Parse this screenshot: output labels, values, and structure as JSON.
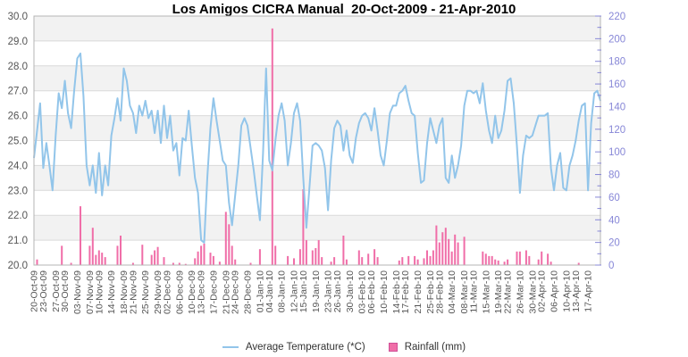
{
  "chart_data": {
    "type": "line+bar",
    "title": "Los Amigos CICRA Manual  20-Oct-2009 - 21-Apr-2010",
    "date_range": {
      "start": "20-Oct-2009",
      "end": "21-Apr-2010"
    },
    "legend_position": "bottom-center",
    "grid": "horizontal-only",
    "x": {
      "num_days": 184,
      "tick_labels": [
        "20-Oct-09",
        "23-Oct-09",
        "27-Oct-09",
        "30-Oct-09",
        "03-Nov-09",
        "07-Nov-09",
        "10-Nov-09",
        "14-Nov-09",
        "18-Nov-09",
        "21-Nov-09",
        "25-Nov-09",
        "29-Nov-09",
        "02-Dec-09",
        "06-Dec-09",
        "10-Dec-09",
        "13-Dec-09",
        "17-Dec-09",
        "21-Dec-09",
        "24-Dec-09",
        "28-Dec-09",
        "01-Jan-10",
        "04-Jan-10",
        "08-Jan-10",
        "12-Jan-10",
        "15-Jan-10",
        "19-Jan-10",
        "23-Jan-10",
        "26-Jan-10",
        "30-Jan-10",
        "03-Feb-10",
        "06-Feb-10",
        "10-Feb-10",
        "14-Feb-10",
        "17-Feb-10",
        "21-Feb-10",
        "25-Feb-10",
        "28-Feb-10",
        "04-Mar-10",
        "08-Mar-10",
        "11-Mar-10",
        "15-Mar-10",
        "19-Mar-10",
        "22-Mar-10",
        "26-Mar-10",
        "30-Mar-10",
        "02-Apr-10",
        "06-Apr-10",
        "10-Apr-10",
        "13-Apr-10",
        "17-Apr-10"
      ],
      "tick_day_index": [
        0,
        3,
        7,
        10,
        14,
        18,
        21,
        25,
        29,
        32,
        36,
        40,
        43,
        47,
        51,
        54,
        58,
        62,
        65,
        69,
        73,
        76,
        80,
        84,
        87,
        91,
        95,
        98,
        102,
        106,
        109,
        113,
        117,
        120,
        124,
        128,
        131,
        135,
        139,
        142,
        146,
        150,
        153,
        157,
        161,
        164,
        168,
        172,
        175,
        179
      ]
    },
    "left_axis": {
      "min": 20,
      "max": 30,
      "major_step": 1,
      "tick_labels": [
        "30.0",
        "29.0",
        "28.0",
        "27.0",
        "26.0",
        "25.0",
        "24.0",
        "23.0",
        "22.0",
        "21.0",
        "20.0"
      ]
    },
    "right_axis": {
      "min": 0,
      "max": 220,
      "major_step": 20,
      "minor_step": 10,
      "tick_labels": [
        "220",
        "200",
        "180",
        "160",
        "140",
        "120",
        "100",
        "80",
        "60",
        "40",
        "20",
        "0"
      ]
    },
    "series": [
      {
        "name": "Average Temperature (*C)",
        "type": "line",
        "axis": "left",
        "color": "#92c5ea",
        "values": [
          24.3,
          25.4,
          26.5,
          23.9,
          24.9,
          24.0,
          23.0,
          25.2,
          26.9,
          26.3,
          27.4,
          26.1,
          25.5,
          27.0,
          28.3,
          28.5,
          26.8,
          24.0,
          23.2,
          24.0,
          22.9,
          24.5,
          22.8,
          24.0,
          23.2,
          25.2,
          25.9,
          26.7,
          25.8,
          27.9,
          27.4,
          26.4,
          26.1,
          25.3,
          26.4,
          26.0,
          26.6,
          25.9,
          26.2,
          25.3,
          26.2,
          24.9,
          26.4,
          25.1,
          26.0,
          24.6,
          24.9,
          23.6,
          25.1,
          25.0,
          26.2,
          24.8,
          23.5,
          22.9,
          21.0,
          20.9,
          23.5,
          25.5,
          26.7,
          25.8,
          25.0,
          24.2,
          24.0,
          22.5,
          21.6,
          22.8,
          24.0,
          25.6,
          25.9,
          25.6,
          24.7,
          23.8,
          22.8,
          21.8,
          24.5,
          27.9,
          24.2,
          23.8,
          25.0,
          26.0,
          26.5,
          25.8,
          24.0,
          24.9,
          26.1,
          26.5,
          25.8,
          23.5,
          21.5,
          23.1,
          24.8,
          24.9,
          24.8,
          24.6,
          23.9,
          22.2,
          24.2,
          25.5,
          25.8,
          25.6,
          24.6,
          25.4,
          24.4,
          24.1,
          25.1,
          25.7,
          26.0,
          26.1,
          25.9,
          25.4,
          26.3,
          25.4,
          24.4,
          24.0,
          25.0,
          26.1,
          26.4,
          26.4,
          26.9,
          27.0,
          27.2,
          26.6,
          26.1,
          26.0,
          24.5,
          23.3,
          23.4,
          24.9,
          25.9,
          25.4,
          24.9,
          25.6,
          25.9,
          23.5,
          23.3,
          24.4,
          23.5,
          24.0,
          24.8,
          26.4,
          27.0,
          27.0,
          26.9,
          27.0,
          26.5,
          27.3,
          26.2,
          25.4,
          24.9,
          26.0,
          25.1,
          25.4,
          26.2,
          27.4,
          27.5,
          26.5,
          24.8,
          22.9,
          24.4,
          25.2,
          25.1,
          25.2,
          25.6,
          26.0,
          26.0,
          26.0,
          26.1,
          23.9,
          23.0,
          24.0,
          24.5,
          23.1,
          23.0,
          24.0,
          24.4,
          25.0,
          25.8,
          26.4,
          26.5,
          23.0,
          25.7,
          26.9,
          27.0,
          26.6
        ]
      },
      {
        "name": "Rainfall (mm)",
        "type": "bar",
        "axis": "right",
        "color": "#f06ea8",
        "border_color": "#cf4f96",
        "values": [
          0,
          5,
          0,
          0,
          0,
          0,
          0,
          0,
          0,
          17,
          0,
          0,
          2,
          0,
          0,
          52,
          0,
          0,
          17,
          33,
          9,
          13,
          11,
          7,
          0,
          0,
          0,
          17,
          26,
          0,
          0,
          0,
          2,
          0,
          0,
          18,
          0,
          0,
          9,
          13,
          16,
          0,
          7,
          0,
          0,
          2,
          0,
          2,
          0,
          1,
          0,
          0,
          6,
          12,
          17,
          19,
          0,
          11,
          8,
          0,
          3,
          0,
          47,
          36,
          17,
          5,
          0,
          0,
          0,
          0,
          2,
          0,
          0,
          14,
          0,
          0,
          0,
          209,
          17,
          0,
          0,
          0,
          8,
          0,
          6,
          0,
          14,
          67,
          22,
          0,
          13,
          15,
          22,
          7,
          0,
          0,
          3,
          7,
          0,
          0,
          26,
          5,
          0,
          0,
          0,
          13,
          7,
          0,
          10,
          0,
          14,
          7,
          0,
          0,
          0,
          0,
          0,
          0,
          4,
          7,
          0,
          8,
          0,
          8,
          5,
          0,
          6,
          13,
          8,
          13,
          35,
          20,
          29,
          33,
          23,
          12,
          27,
          20,
          0,
          25,
          0,
          0,
          0,
          0,
          0,
          12,
          10,
          8,
          8,
          5,
          4,
          0,
          3,
          5,
          0,
          0,
          12,
          12,
          0,
          13,
          8,
          0,
          0,
          5,
          12,
          0,
          10,
          3,
          0,
          0,
          0,
          0,
          0,
          0,
          0,
          0,
          2,
          0,
          0,
          0,
          0,
          0,
          0,
          0
        ]
      }
    ],
    "style": {
      "band_fill": "#f2f2f2",
      "gridline_color": "#d9d9d9",
      "plot_border_color": "#b5b5b5",
      "axis_text_color": "#555555",
      "right_axis_text_color": "#8787d7",
      "title_color": "#000000",
      "background": "#ffffff",
      "interlaced_bands": true
    }
  },
  "legend": {
    "temperature_label": "Average Temperature (*C)",
    "rainfall_label": "Rainfall (mm)"
  }
}
